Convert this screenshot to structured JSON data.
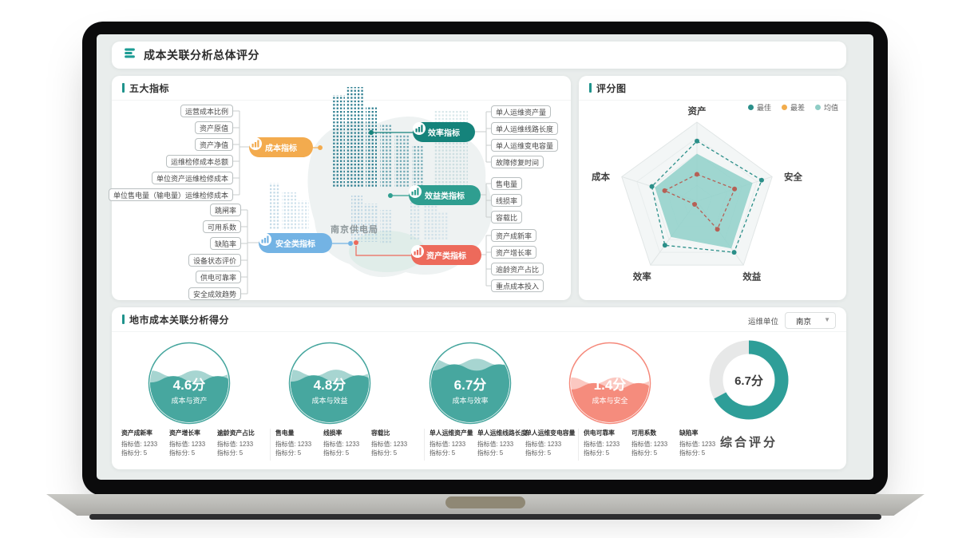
{
  "header": {
    "title": "成本关联分析总体评分"
  },
  "indicators": {
    "title": "五大指标",
    "center_label": "南京供电局",
    "groups": [
      {
        "node": "成本指标",
        "color": "#f3ab4e",
        "items": [
          "运营成本比例",
          "资产原值",
          "资产净值",
          "运维检修成本总额",
          "单位资产运维检修成本",
          "单位售电量（输电量）运维检修成本"
        ]
      },
      {
        "node": "安全类指标",
        "color": "#73b3e4",
        "items": [
          "跳闸率",
          "可用系数",
          "缺陷率",
          "设备状态评价",
          "供电可靠率",
          "安全成效趋势"
        ]
      },
      {
        "node": "效率指标",
        "color": "#15837b",
        "items": [
          "单人运维资产量",
          "单人运维线路长度",
          "单人运维变电容量",
          "故障修复时间"
        ]
      },
      {
        "node": "效益类指标",
        "color": "#2f9e90",
        "items": [
          "售电量",
          "线损率",
          "容载比"
        ]
      },
      {
        "node": "资产类指标",
        "color": "#ed6a5b",
        "items": [
          "资产成新率",
          "资产增长率",
          "逾龄资产占比",
          "重点成本投入"
        ]
      }
    ]
  },
  "radar_panel": {
    "title": "评分图",
    "legend": [
      {
        "label": "最佳",
        "color": "#2a8f8a"
      },
      {
        "label": "最差",
        "color": "#f2ac4c"
      },
      {
        "label": "均值",
        "color": "#8fcdc6"
      }
    ]
  },
  "scores_panel": {
    "title": "地市成本关联分析得分",
    "unit_label": "运维单位",
    "unit_value": "南京",
    "summary_label": "综合评分",
    "gauges": [
      {
        "value": "4.6",
        "unit": "分",
        "label": "成本与资产",
        "color": "#44a59d",
        "fill": 0.55,
        "kind": "liquid"
      },
      {
        "value": "4.8",
        "unit": "分",
        "label": "成本与效益",
        "color": "#44a59d",
        "fill": 0.56,
        "kind": "liquid"
      },
      {
        "value": "6.7",
        "unit": "分",
        "label": "成本与效率",
        "color": "#44a59d",
        "fill": 0.7,
        "kind": "liquid"
      },
      {
        "value": "1.4",
        "unit": "分",
        "label": "成本与安全",
        "color": "#f5897b",
        "fill": 0.46,
        "kind": "liquid"
      },
      {
        "value": "6.7",
        "unit": "分",
        "label": "综合评分",
        "color": "#2e9e98",
        "fill": 0.67,
        "kind": "donut"
      }
    ],
    "metric_value_label": "指标值",
    "metric_score_label": "指标分",
    "metric_groups": [
      [
        {
          "name": "资产成新率",
          "value": "1233",
          "score": "5"
        },
        {
          "name": "资产增长率",
          "value": "1233",
          "score": "5"
        },
        {
          "name": "逾龄资产占比",
          "value": "1233",
          "score": "5"
        }
      ],
      [
        {
          "name": "售电量",
          "value": "1233",
          "score": "5"
        },
        {
          "name": "线损率",
          "value": "1233",
          "score": "5"
        },
        {
          "name": "容载比",
          "value": "1233",
          "score": "5"
        }
      ],
      [
        {
          "name": "单人运维资产量",
          "value": "1233",
          "score": "5"
        },
        {
          "name": "单人运维线路长度",
          "value": "1233",
          "score": "5"
        },
        {
          "name": "单人运维变电容量",
          "value": "1233",
          "score": "5"
        }
      ],
      [
        {
          "name": "供电可靠率",
          "value": "1233",
          "score": "5"
        },
        {
          "name": "可用系数",
          "value": "1233",
          "score": "5"
        },
        {
          "name": "缺陷率",
          "value": "1233",
          "score": "5"
        }
      ]
    ]
  },
  "chart_data": [
    {
      "type": "radar",
      "title": "评分图",
      "axes": [
        "资产",
        "安全",
        "效益",
        "效率",
        "成本"
      ],
      "max": 10,
      "legend_position": "top-right",
      "series": [
        {
          "name": "最佳",
          "values": [
            7.6,
            8.6,
            8.0,
            6.9,
            6.0
          ],
          "color": "#2b8f89",
          "style": "dashed"
        },
        {
          "name": "最差",
          "values": [
            3.4,
            5.0,
            4.4,
            0.5,
            4.3
          ],
          "color": "#b66055",
          "style": "dashed"
        },
        {
          "name": "均值",
          "values": [
            6.0,
            7.4,
            7.4,
            5.6,
            5.6
          ],
          "color": "#8fd0c9",
          "style": "area"
        }
      ]
    },
    {
      "type": "gauge",
      "title": "地市成本关联分析得分",
      "max": 10,
      "items": [
        {
          "label": "成本与资产",
          "value": 4.6
        },
        {
          "label": "成本与效益",
          "value": 4.8
        },
        {
          "label": "成本与效率",
          "value": 6.7
        },
        {
          "label": "成本与安全",
          "value": 1.4
        },
        {
          "label": "综合评分",
          "value": 6.7
        }
      ]
    }
  ]
}
